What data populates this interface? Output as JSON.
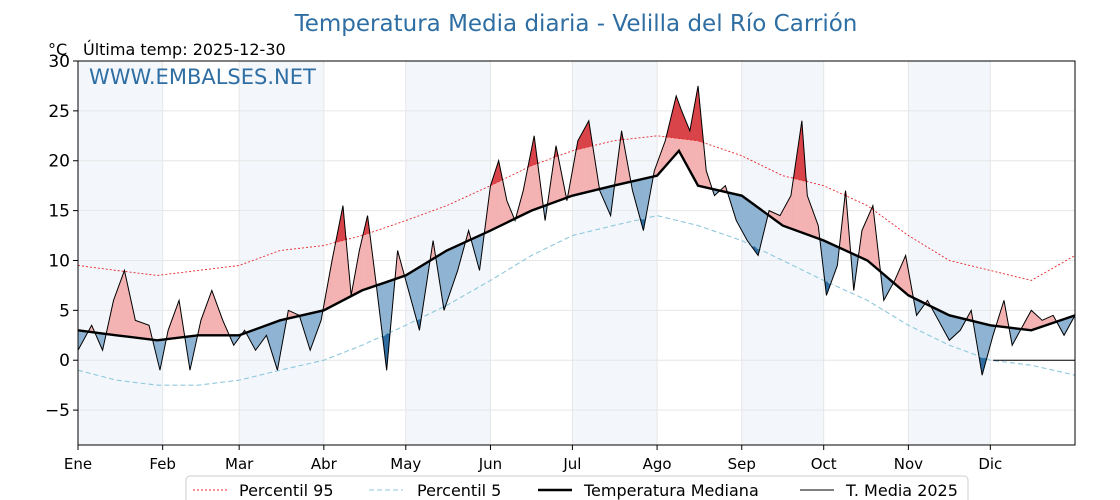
{
  "chart_data": {
    "type": "line",
    "title": "Temperatura Media diaria - Velilla del Río Carrión",
    "unit": "°C",
    "last_temp_label": "Última temp: 2025-12-30",
    "watermark": "WWW.EMBALSES.NET",
    "ylim": [
      -8.5,
      30
    ],
    "yticks": [
      -5,
      0,
      5,
      10,
      15,
      20,
      25,
      30
    ],
    "xlim": [
      1,
      366
    ],
    "x_ticks": [
      {
        "day": 1,
        "label": "Ene"
      },
      {
        "day": 32,
        "label": "Feb"
      },
      {
        "day": 60,
        "label": "Mar"
      },
      {
        "day": 91,
        "label": "Abr"
      },
      {
        "day": 121,
        "label": "May"
      },
      {
        "day": 152,
        "label": "Jun"
      },
      {
        "day": 182,
        "label": "Jul"
      },
      {
        "day": 213,
        "label": "Ago"
      },
      {
        "day": 244,
        "label": "Sep"
      },
      {
        "day": 274,
        "label": "Oct"
      },
      {
        "day": 305,
        "label": "Nov"
      },
      {
        "day": 335,
        "label": "Dic"
      }
    ],
    "shaded_months": [
      [
        1,
        32
      ],
      [
        60,
        91
      ],
      [
        121,
        152
      ],
      [
        182,
        213
      ],
      [
        244,
        274
      ],
      [
        305,
        335
      ]
    ],
    "grid": true,
    "legend_position": "bottom",
    "colors": {
      "p95": "#e8262a",
      "p5": "#8ec8dc",
      "median": "#000000",
      "current": "#000000",
      "above": "#f4b3b3",
      "below": "#8fb4d3",
      "cold": "#2f6da2",
      "title": "#2e6ea3",
      "band": "#e9f1f9"
    },
    "series": [
      {
        "name": "Percentil 95",
        "key": "p95",
        "points": [
          [
            1,
            9.5
          ],
          [
            15,
            9
          ],
          [
            30,
            8.5
          ],
          [
            45,
            9
          ],
          [
            60,
            9.5
          ],
          [
            75,
            11
          ],
          [
            91,
            11.5
          ],
          [
            105,
            12.5
          ],
          [
            121,
            14
          ],
          [
            136,
            15.5
          ],
          [
            152,
            17.5
          ],
          [
            167,
            19.5
          ],
          [
            182,
            21
          ],
          [
            197,
            22
          ],
          [
            213,
            22.5
          ],
          [
            228,
            22
          ],
          [
            244,
            20.5
          ],
          [
            259,
            18.5
          ],
          [
            274,
            17.5
          ],
          [
            290,
            15.5
          ],
          [
            305,
            12.5
          ],
          [
            320,
            10
          ],
          [
            335,
            9
          ],
          [
            350,
            8
          ],
          [
            366,
            10.5
          ]
        ]
      },
      {
        "name": "Percentil 5",
        "key": "p5",
        "points": [
          [
            1,
            -1
          ],
          [
            15,
            -2
          ],
          [
            30,
            -2.5
          ],
          [
            45,
            -2.5
          ],
          [
            60,
            -2
          ],
          [
            75,
            -1
          ],
          [
            91,
            0
          ],
          [
            105,
            1.5
          ],
          [
            121,
            3.5
          ],
          [
            136,
            5.5
          ],
          [
            152,
            8
          ],
          [
            167,
            10.5
          ],
          [
            182,
            12.5
          ],
          [
            197,
            13.5
          ],
          [
            213,
            14.5
          ],
          [
            228,
            13.5
          ],
          [
            244,
            12
          ],
          [
            259,
            10
          ],
          [
            274,
            8
          ],
          [
            290,
            6
          ],
          [
            305,
            3.5
          ],
          [
            320,
            1.5
          ],
          [
            335,
            0
          ],
          [
            350,
            -0.5
          ],
          [
            366,
            -1.5
          ]
        ]
      },
      {
        "name": "Temperatura Mediana",
        "key": "median",
        "points": [
          [
            1,
            3
          ],
          [
            15,
            2.5
          ],
          [
            30,
            2
          ],
          [
            45,
            2.5
          ],
          [
            60,
            2.5
          ],
          [
            75,
            4
          ],
          [
            91,
            5
          ],
          [
            105,
            7
          ],
          [
            121,
            8.5
          ],
          [
            136,
            11
          ],
          [
            152,
            13
          ],
          [
            167,
            15
          ],
          [
            182,
            16.5
          ],
          [
            197,
            17.5
          ],
          [
            213,
            18.5
          ],
          [
            221,
            21
          ],
          [
            228,
            17.5
          ],
          [
            244,
            16.5
          ],
          [
            259,
            13.5
          ],
          [
            274,
            12
          ],
          [
            290,
            10
          ],
          [
            305,
            6.5
          ],
          [
            320,
            4.5
          ],
          [
            335,
            3.5
          ],
          [
            350,
            3
          ],
          [
            366,
            4.5
          ]
        ]
      },
      {
        "name": "T. Media 2025",
        "key": "current",
        "points": [
          [
            1,
            1
          ],
          [
            6,
            3.5
          ],
          [
            10,
            1
          ],
          [
            14,
            6
          ],
          [
            18,
            9
          ],
          [
            22,
            4
          ],
          [
            27,
            3.5
          ],
          [
            31,
            -1
          ],
          [
            34,
            3
          ],
          [
            38,
            6
          ],
          [
            42,
            -1
          ],
          [
            46,
            4
          ],
          [
            50,
            7
          ],
          [
            54,
            4
          ],
          [
            58,
            1.5
          ],
          [
            62,
            3
          ],
          [
            66,
            1
          ],
          [
            70,
            2.5
          ],
          [
            74,
            -1
          ],
          [
            78,
            5
          ],
          [
            82,
            4.5
          ],
          [
            86,
            1
          ],
          [
            90,
            4
          ],
          [
            94,
            10
          ],
          [
            98,
            15.5
          ],
          [
            101,
            6.5
          ],
          [
            104,
            11
          ],
          [
            107,
            14.5
          ],
          [
            110,
            8
          ],
          [
            114,
            -1
          ],
          [
            118,
            11
          ],
          [
            122,
            7
          ],
          [
            126,
            3
          ],
          [
            131,
            12
          ],
          [
            135,
            5
          ],
          [
            140,
            9
          ],
          [
            144,
            13
          ],
          [
            148,
            9
          ],
          [
            152,
            17.5
          ],
          [
            155,
            20
          ],
          [
            158,
            16
          ],
          [
            161,
            14
          ],
          [
            164,
            17
          ],
          [
            168,
            22.5
          ],
          [
            172,
            14
          ],
          [
            176,
            21.5
          ],
          [
            180,
            16
          ],
          [
            184,
            22
          ],
          [
            188,
            24
          ],
          [
            192,
            17
          ],
          [
            196,
            14.5
          ],
          [
            200,
            23
          ],
          [
            204,
            17
          ],
          [
            208,
            13
          ],
          [
            212,
            19
          ],
          [
            216,
            22
          ],
          [
            220,
            26.5
          ],
          [
            222,
            25
          ],
          [
            225,
            23
          ],
          [
            228,
            27.5
          ],
          [
            231,
            19
          ],
          [
            234,
            16.5
          ],
          [
            238,
            17.5
          ],
          [
            242,
            14
          ],
          [
            246,
            12
          ],
          [
            250,
            10.5
          ],
          [
            254,
            15
          ],
          [
            258,
            14.5
          ],
          [
            262,
            16.5
          ],
          [
            266,
            24
          ],
          [
            268,
            16.5
          ],
          [
            272,
            13.5
          ],
          [
            275,
            6.5
          ],
          [
            279,
            9.5
          ],
          [
            282,
            17
          ],
          [
            285,
            7
          ],
          [
            288,
            13
          ],
          [
            292,
            15.5
          ],
          [
            296,
            6
          ],
          [
            300,
            8
          ],
          [
            304,
            10.5
          ],
          [
            308,
            4.5
          ],
          [
            312,
            6
          ],
          [
            316,
            4
          ],
          [
            320,
            2
          ],
          [
            324,
            3
          ],
          [
            328,
            5
          ],
          [
            332,
            -1.5
          ],
          [
            336,
            2.5
          ],
          [
            340,
            6
          ],
          [
            343,
            1.5
          ],
          [
            346,
            3
          ],
          [
            350,
            5
          ],
          [
            354,
            4
          ],
          [
            358,
            4.5
          ],
          [
            362,
            2.5
          ],
          [
            366,
            4.5
          ]
        ]
      }
    ]
  }
}
